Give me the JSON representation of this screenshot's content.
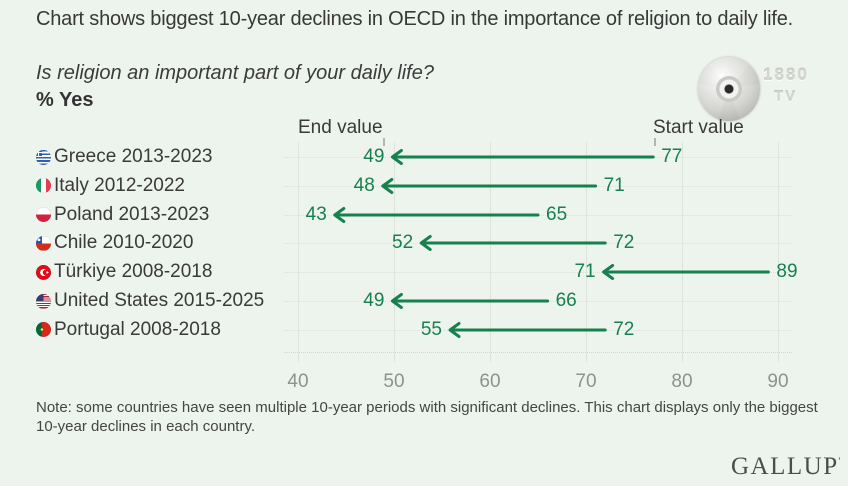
{
  "header": {
    "title": "Chart shows biggest 10-year declines in OECD in the importance of religion to daily life.",
    "question": "Is religion an important part of your daily life?",
    "measure": "% Yes"
  },
  "watermark": {
    "line1": "1880",
    "line2": "TV"
  },
  "chart_data": {
    "type": "arrow-range",
    "title": "Biggest 10-year declines in OECD in the importance of religion to daily life",
    "question": "Is religion an important part of your daily life?",
    "unit": "% Yes",
    "end_header": "End value",
    "start_header": "Start value",
    "categories": [
      "Greece 2013-2023",
      "Italy 2012-2022",
      "Poland 2013-2023",
      "Chile 2010-2020",
      "Türkiye 2008-2018",
      "United States 2015-2025",
      "Portugal 2008-2018"
    ],
    "rows": [
      {
        "flag": "greece",
        "label": "Greece 2013-2023",
        "start": 77,
        "end": 49
      },
      {
        "flag": "italy",
        "label": "Italy 2012-2022",
        "start": 71,
        "end": 48
      },
      {
        "flag": "poland",
        "label": "Poland 2013-2023",
        "start": 65,
        "end": 43
      },
      {
        "flag": "chile",
        "label": "Chile 2010-2020",
        "start": 72,
        "end": 52
      },
      {
        "flag": "turkiye",
        "label": "Türkiye 2008-2018",
        "start": 89,
        "end": 71
      },
      {
        "flag": "usa",
        "label": "United States 2015-2025",
        "start": 66,
        "end": 49
      },
      {
        "flag": "portugal",
        "label": "Portugal 2008-2018",
        "start": 72,
        "end": 55
      }
    ],
    "series": [
      {
        "name": "Start value",
        "values": [
          77,
          71,
          65,
          72,
          89,
          66,
          72
        ]
      },
      {
        "name": "End value",
        "values": [
          49,
          48,
          43,
          52,
          71,
          49,
          55
        ]
      }
    ],
    "x_ticks": [
      40,
      50,
      60,
      70,
      80,
      90
    ],
    "xlim": [
      40,
      90
    ],
    "grid": true,
    "accent_color": "#17804f"
  },
  "note": "Note: some countries have seen multiple 10-year periods with significant declines. This chart displays only the biggest 10-year declines in each country.",
  "footer": {
    "brand": "GALLUP"
  }
}
